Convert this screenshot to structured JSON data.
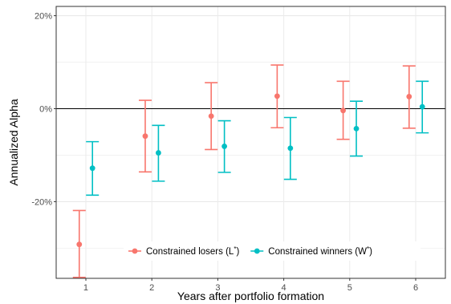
{
  "chart_data": {
    "type": "scatter",
    "xlabel": "Years after portfolio formation",
    "ylabel": "Annualized Alpha",
    "categories": [
      "1",
      "2",
      "3",
      "4",
      "5",
      "6"
    ],
    "x": [
      1,
      2,
      3,
      4,
      5,
      6
    ],
    "xlim": [
      0.55,
      6.45
    ],
    "ylim": [
      -36.5,
      22
    ],
    "y_ticks": [
      20,
      0,
      -20
    ],
    "y_tick_labels": [
      "20%",
      "0%",
      "-20%"
    ],
    "reference_line_y": 0,
    "grid": true,
    "legend_position": "bottom-inside",
    "series": [
      {
        "name": "Constrained losers (L",
        "name_sup": "*",
        "name_end": ")",
        "color": "#f8766d",
        "offset": -0.1,
        "values": [
          -29.2,
          -5.9,
          -1.6,
          2.7,
          -0.4,
          2.6
        ],
        "lower": [
          -36.3,
          -13.6,
          -8.8,
          -4.1,
          -6.6,
          -4.2
        ],
        "upper": [
          -21.9,
          1.8,
          5.6,
          9.4,
          5.9,
          9.2
        ]
      },
      {
        "name": "Constrained winners (W",
        "name_sup": "*",
        "name_end": ")",
        "color": "#00bfc4",
        "offset": 0.1,
        "values": [
          -12.8,
          -9.5,
          -8.1,
          -8.5,
          -4.3,
          0.4
        ],
        "lower": [
          -18.6,
          -15.6,
          -13.7,
          -15.2,
          -10.2,
          -5.2
        ],
        "upper": [
          -7.1,
          -3.6,
          -2.6,
          -1.9,
          1.6,
          5.9
        ]
      }
    ]
  }
}
